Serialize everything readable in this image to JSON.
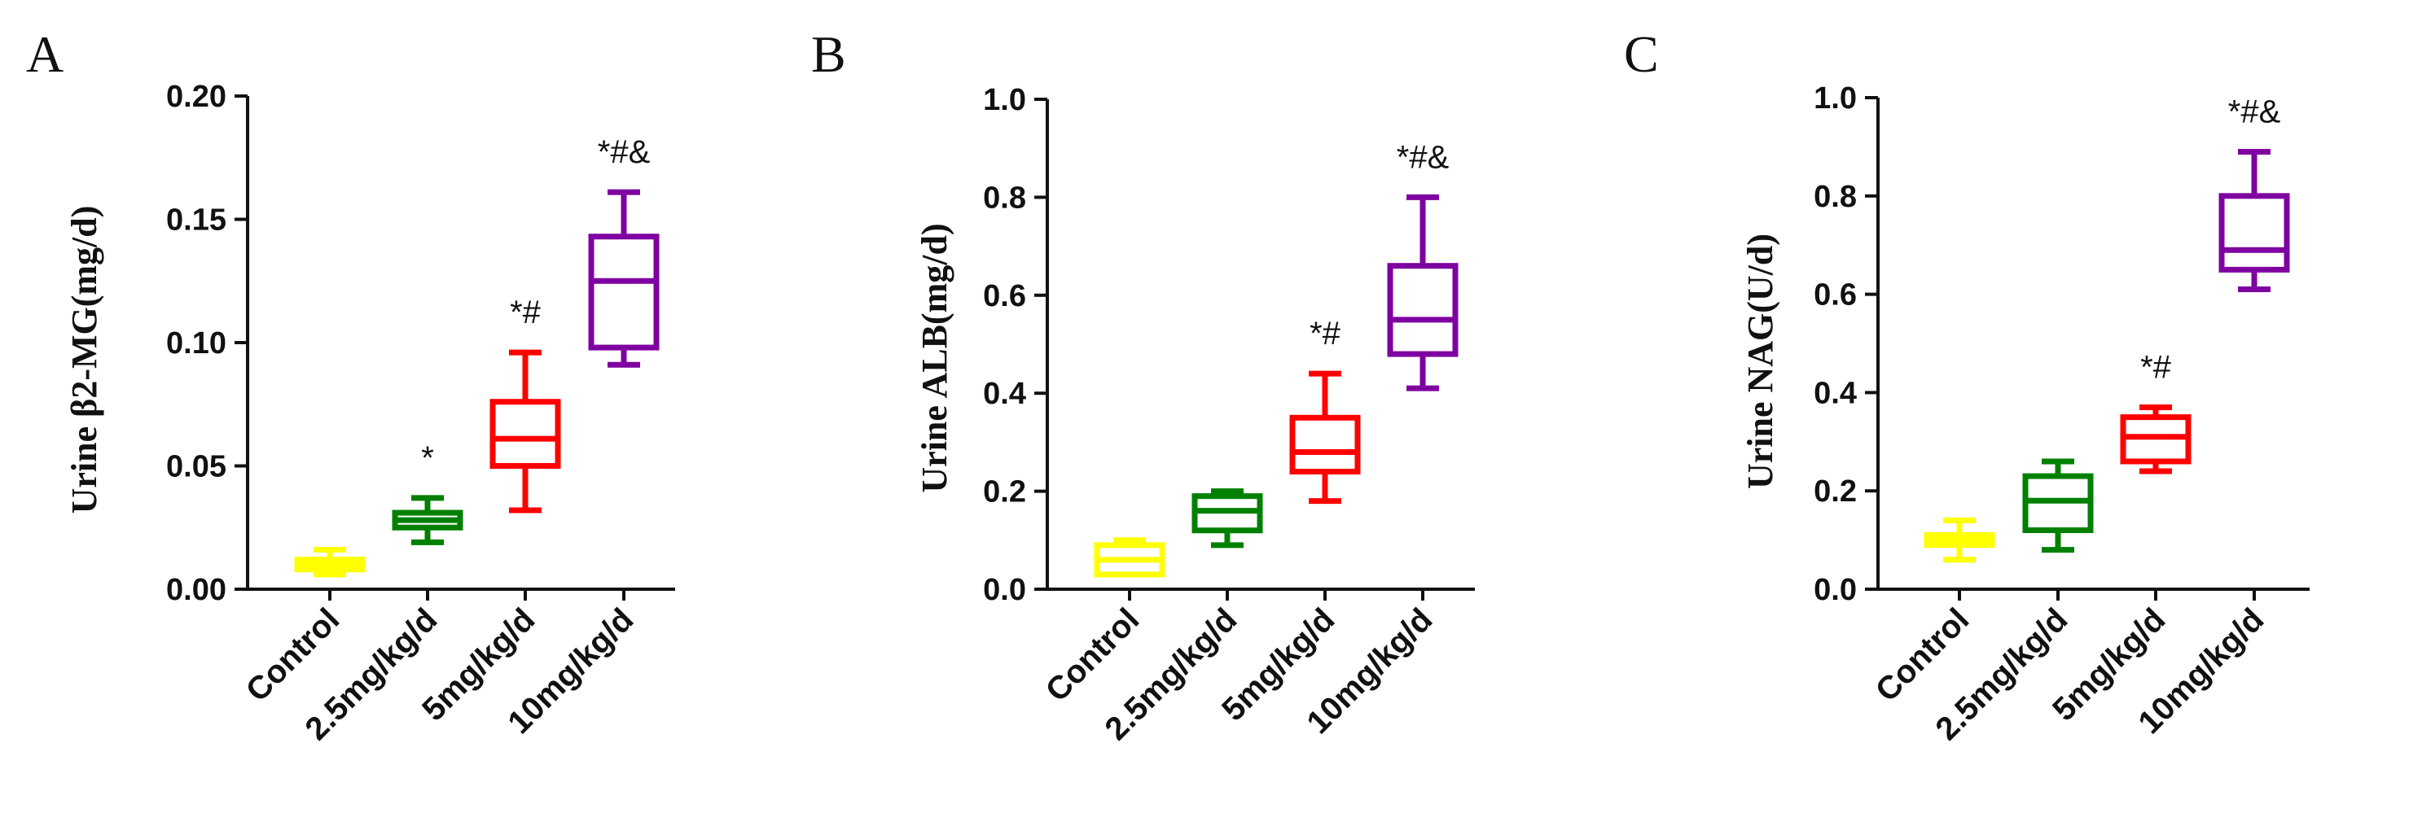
{
  "chart_data": [
    {
      "type": "box",
      "panel": "A",
      "ylabel": "Urine β2-MG(mg/d)",
      "ylim": [
        0,
        0.2
      ],
      "yticks": [
        "0.00",
        "0.05",
        "0.10",
        "0.15",
        "0.20"
      ],
      "ytick_values": [
        0,
        0.05,
        0.1,
        0.15,
        0.2
      ],
      "categories": [
        "Control",
        "2.5mg/kg/d",
        "5mg/kg/d",
        "10mg/kg/d"
      ],
      "colors": [
        "#ffff00",
        "#008000",
        "#ff0000",
        "#7f00a0"
      ],
      "boxes": [
        {
          "min": 0.006,
          "q1": 0.008,
          "median": 0.01,
          "q3": 0.012,
          "max": 0.016
        },
        {
          "min": 0.019,
          "q1": 0.025,
          "median": 0.028,
          "q3": 0.031,
          "max": 0.037
        },
        {
          "min": 0.032,
          "q1": 0.05,
          "median": 0.061,
          "q3": 0.076,
          "max": 0.096
        },
        {
          "min": 0.091,
          "q1": 0.098,
          "median": 0.125,
          "q3": 0.143,
          "max": 0.161
        }
      ],
      "significance": [
        "",
        "*",
        "*#",
        "*#&"
      ]
    },
    {
      "type": "box",
      "panel": "B",
      "ylabel": "Urine ALB(mg/d)",
      "ylim": [
        0,
        1.0
      ],
      "yticks": [
        "0.0",
        "0.2",
        "0.4",
        "0.6",
        "0.8",
        "1.0"
      ],
      "ytick_values": [
        0,
        0.2,
        0.4,
        0.6,
        0.8,
        1.0
      ],
      "categories": [
        "Control",
        "2.5mg/kg/d",
        "5mg/kg/d",
        "10mg/kg/d"
      ],
      "colors": [
        "#ffff00",
        "#008000",
        "#ff0000",
        "#7f00a0"
      ],
      "boxes": [
        {
          "min": 0.03,
          "q1": 0.03,
          "median": 0.06,
          "q3": 0.09,
          "max": 0.1
        },
        {
          "min": 0.09,
          "q1": 0.12,
          "median": 0.16,
          "q3": 0.19,
          "max": 0.2
        },
        {
          "min": 0.18,
          "q1": 0.24,
          "median": 0.28,
          "q3": 0.35,
          "max": 0.44
        },
        {
          "min": 0.41,
          "q1": 0.48,
          "median": 0.55,
          "q3": 0.66,
          "max": 0.8
        }
      ],
      "significance": [
        "",
        "",
        "*#",
        "*#&"
      ]
    },
    {
      "type": "box",
      "panel": "C",
      "ylabel": "Urine NAG(U/d)",
      "ylim": [
        0,
        1.0
      ],
      "yticks": [
        "0.0",
        "0.2",
        "0.4",
        "0.6",
        "0.8",
        "1.0"
      ],
      "ytick_values": [
        0,
        0.2,
        0.4,
        0.6,
        0.8,
        1.0
      ],
      "categories": [
        "Control",
        "2.5mg/kg/d",
        "5mg/kg/d",
        "10mg/kg/d"
      ],
      "colors": [
        "#ffff00",
        "#008000",
        "#ff0000",
        "#7f00a0"
      ],
      "boxes": [
        {
          "min": 0.06,
          "q1": 0.09,
          "median": 0.1,
          "q3": 0.11,
          "max": 0.14
        },
        {
          "min": 0.08,
          "q1": 0.12,
          "median": 0.18,
          "q3": 0.23,
          "max": 0.26
        },
        {
          "min": 0.24,
          "q1": 0.26,
          "median": 0.31,
          "q3": 0.35,
          "max": 0.37
        },
        {
          "min": 0.61,
          "q1": 0.65,
          "median": 0.69,
          "q3": 0.8,
          "max": 0.89
        }
      ],
      "significance": [
        "",
        "",
        "*#",
        "*#&"
      ]
    }
  ]
}
